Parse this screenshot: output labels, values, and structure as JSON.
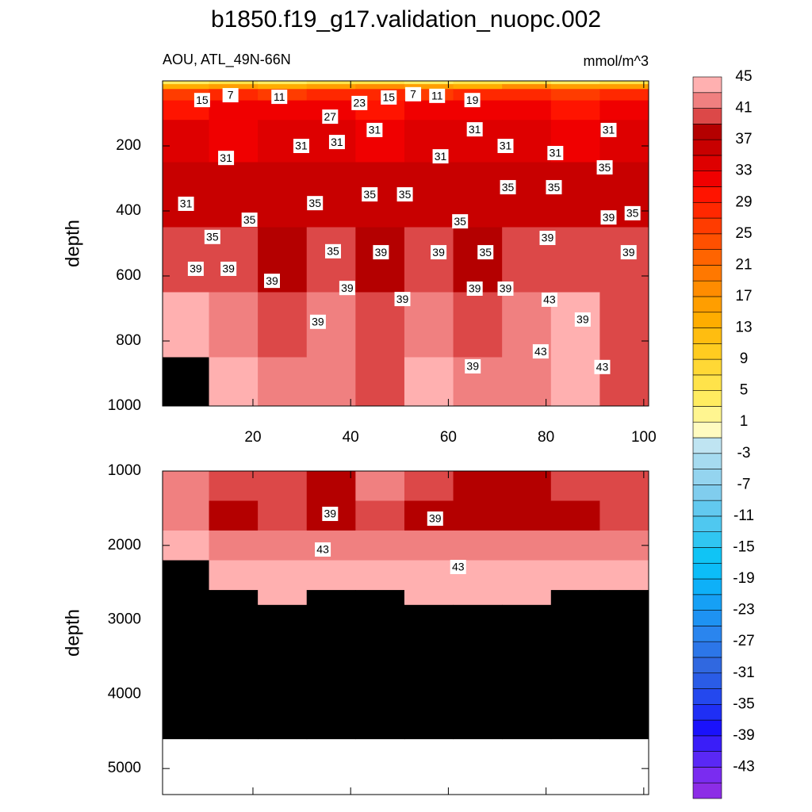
{
  "chart_data": {
    "type": "contour",
    "title": "b1850.f19_g17.validation_nuopc.002",
    "subtitle": "AOU, ATL_49N-66N",
    "units": "mmol/m^3",
    "colorbar": {
      "levels": [
        -45,
        -43,
        -41,
        -39,
        -37,
        -35,
        -33,
        -31,
        -29,
        -27,
        -25,
        -23,
        -21,
        -19,
        -17,
        -15,
        -13,
        -11,
        -9,
        -7,
        -5,
        -3,
        -1,
        1,
        3,
        5,
        7,
        9,
        11,
        13,
        15,
        17,
        19,
        21,
        23,
        25,
        27,
        29,
        31,
        33,
        35,
        37,
        39,
        41,
        43,
        45
      ],
      "colors": [
        "#8c2de6",
        "#7a2cf0",
        "#5a28f5",
        "#3a1ef8",
        "#1a12fb",
        "#1f2ff5",
        "#2448ee",
        "#2a5ce6",
        "#3068e0",
        "#2c76e8",
        "#2a85ee",
        "#1e92f2",
        "#16a0f5",
        "#0eb0f8",
        "#0cbdf8",
        "#10c4f5",
        "#30c6f2",
        "#4fc8f0",
        "#62c9ef",
        "#80cdee",
        "#94d4ef",
        "#a6dbf0",
        "#bfe4f2",
        "#fffbc0",
        "#fff590",
        "#ffec60",
        "#ffe34a",
        "#ffd835",
        "#ffcc20",
        "#ffbd10",
        "#ffad00",
        "#ff9e00",
        "#ff8c00",
        "#ff7800",
        "#ff6400",
        "#ff5000",
        "#ff3c00",
        "#ff2800",
        "#ff1400",
        "#f00000",
        "#de0000",
        "#c80000",
        "#b40000",
        "#dc4848",
        "#f08080",
        "#ffb0b0"
      ],
      "ticks": [
        -43,
        -39,
        -35,
        -31,
        -27,
        -23,
        -19,
        -15,
        -11,
        -7,
        -3,
        1,
        5,
        9,
        13,
        17,
        21,
        25,
        29,
        33,
        37,
        41,
        45
      ]
    },
    "panels": [
      {
        "ylabel": "depth",
        "xlim": [
          1.5,
          101
        ],
        "ylim": [
          0,
          1000
        ],
        "xticks": [
          20,
          40,
          60,
          80,
          100
        ],
        "yticks": [
          200,
          400,
          600,
          800,
          1000
        ],
        "show_xtick_labels": true,
        "x_edges": [
          1.5,
          11,
          21,
          31,
          41,
          51,
          61,
          71,
          81,
          91,
          101
        ],
        "y_edges": [
          0,
          10,
          25,
          60,
          120,
          250,
          450,
          650,
          850,
          1000
        ],
        "z": [
          [
            3,
            5,
            4,
            6,
            5,
            4,
            5,
            6,
            4,
            5
          ],
          [
            14,
            15,
            13,
            16,
            17,
            15,
            14,
            18,
            16,
            15
          ],
          [
            26,
            27,
            25,
            28,
            27,
            26,
            28,
            27,
            26,
            27
          ],
          [
            30,
            31,
            31,
            32,
            30,
            31,
            32,
            31,
            30,
            31
          ],
          [
            33,
            32,
            34,
            33,
            32,
            33,
            34,
            33,
            32,
            33
          ],
          [
            36,
            35,
            36,
            35,
            36,
            35,
            36,
            36,
            35,
            36
          ],
          [
            40,
            39,
            38,
            39,
            38,
            39,
            38,
            39,
            40,
            39
          ],
          [
            43,
            41,
            40,
            41,
            39,
            42,
            40,
            41,
            43,
            40
          ],
          [
            46,
            43,
            41,
            42,
            40,
            44,
            41,
            42,
            44,
            40
          ]
        ],
        "contour_labels": [
          {
            "x": 9.6,
            "y": 59,
            "value": 15
          },
          {
            "x": 15.4,
            "y": 44,
            "value": 7
          },
          {
            "x": 25.4,
            "y": 49,
            "value": 11
          },
          {
            "x": 41.8,
            "y": 68,
            "value": 23
          },
          {
            "x": 47.8,
            "y": 51,
            "value": 15
          },
          {
            "x": 52.8,
            "y": 41,
            "value": 7
          },
          {
            "x": 57.7,
            "y": 46,
            "value": 11
          },
          {
            "x": 64.9,
            "y": 59,
            "value": 19
          },
          {
            "x": 35.8,
            "y": 110,
            "value": 27
          },
          {
            "x": 44.9,
            "y": 151,
            "value": 31
          },
          {
            "x": 29.9,
            "y": 200,
            "value": 31
          },
          {
            "x": 37.2,
            "y": 188,
            "value": 31
          },
          {
            "x": 14.5,
            "y": 237,
            "value": 31
          },
          {
            "x": 65.4,
            "y": 149,
            "value": 31
          },
          {
            "x": 71.7,
            "y": 200,
            "value": 31
          },
          {
            "x": 81.9,
            "y": 222,
            "value": 31
          },
          {
            "x": 92.8,
            "y": 151,
            "value": 31
          },
          {
            "x": 58.4,
            "y": 232,
            "value": 31
          },
          {
            "x": 6.3,
            "y": 378,
            "value": 31
          },
          {
            "x": 92,
            "y": 266,
            "value": 35
          },
          {
            "x": 72.2,
            "y": 327,
            "value": 35
          },
          {
            "x": 81.6,
            "y": 327,
            "value": 35
          },
          {
            "x": 43.9,
            "y": 349,
            "value": 35
          },
          {
            "x": 51.1,
            "y": 349,
            "value": 35
          },
          {
            "x": 32.7,
            "y": 376,
            "value": 35
          },
          {
            "x": 19.3,
            "y": 427,
            "value": 35
          },
          {
            "x": 62.4,
            "y": 432,
            "value": 35
          },
          {
            "x": 11.7,
            "y": 480,
            "value": 35
          },
          {
            "x": 92.8,
            "y": 420,
            "value": 39
          },
          {
            "x": 97.7,
            "y": 407,
            "value": 35
          },
          {
            "x": 80.3,
            "y": 483,
            "value": 39
          },
          {
            "x": 36.4,
            "y": 524,
            "value": 35
          },
          {
            "x": 46.2,
            "y": 527,
            "value": 39
          },
          {
            "x": 58,
            "y": 527,
            "value": 39
          },
          {
            "x": 67.6,
            "y": 527,
            "value": 35
          },
          {
            "x": 96.9,
            "y": 527,
            "value": 39
          },
          {
            "x": 8.3,
            "y": 578,
            "value": 39
          },
          {
            "x": 15,
            "y": 578,
            "value": 39
          },
          {
            "x": 23.9,
            "y": 615,
            "value": 39
          },
          {
            "x": 39.3,
            "y": 637,
            "value": 39
          },
          {
            "x": 50.6,
            "y": 671,
            "value": 39
          },
          {
            "x": 65.4,
            "y": 639,
            "value": 39
          },
          {
            "x": 71.7,
            "y": 639,
            "value": 39
          },
          {
            "x": 80.7,
            "y": 673,
            "value": 43
          },
          {
            "x": 33.3,
            "y": 741,
            "value": 39
          },
          {
            "x": 87.5,
            "y": 734,
            "value": 39
          },
          {
            "x": 78.9,
            "y": 832,
            "value": 43
          },
          {
            "x": 65,
            "y": 878,
            "value": 39
          },
          {
            "x": 91.5,
            "y": 880,
            "value": 43
          }
        ]
      },
      {
        "ylabel": "depth",
        "xlim": [
          1.5,
          101
        ],
        "ylim": [
          1000,
          5350
        ],
        "xticks": [
          20,
          40,
          60,
          80,
          100
        ],
        "yticks": [
          1000,
          2000,
          3000,
          4000,
          5000
        ],
        "show_xtick_labels": false,
        "x_edges": [
          1.5,
          11,
          21,
          31,
          41,
          51,
          61,
          71,
          81,
          91,
          101
        ],
        "y_edges": [
          1000,
          1400,
          1800,
          2200,
          2600,
          2800,
          4600
        ],
        "z": [
          [
            42,
            39,
            40,
            38,
            41,
            39,
            38,
            38,
            39,
            40
          ],
          [
            41,
            38,
            39,
            38,
            40,
            38,
            37,
            37,
            38,
            39
          ],
          [
            43,
            42,
            41,
            42,
            42,
            41,
            41,
            41,
            41,
            42
          ],
          [
            45,
            44,
            43,
            43,
            44,
            43,
            43,
            43,
            43,
            44
          ],
          [
            46,
            46,
            44,
            45,
            46,
            44,
            44,
            44,
            45,
            46
          ],
          [
            46,
            46,
            46,
            46,
            46,
            46,
            46,
            46,
            46,
            46
          ]
        ],
        "contour_labels": [
          {
            "x": 35.8,
            "y": 1576,
            "value": 39
          },
          {
            "x": 57.3,
            "y": 1640,
            "value": 39
          },
          {
            "x": 34.3,
            "y": 2055,
            "value": 43
          },
          {
            "x": 62,
            "y": 2290,
            "value": 43
          }
        ]
      }
    ]
  }
}
